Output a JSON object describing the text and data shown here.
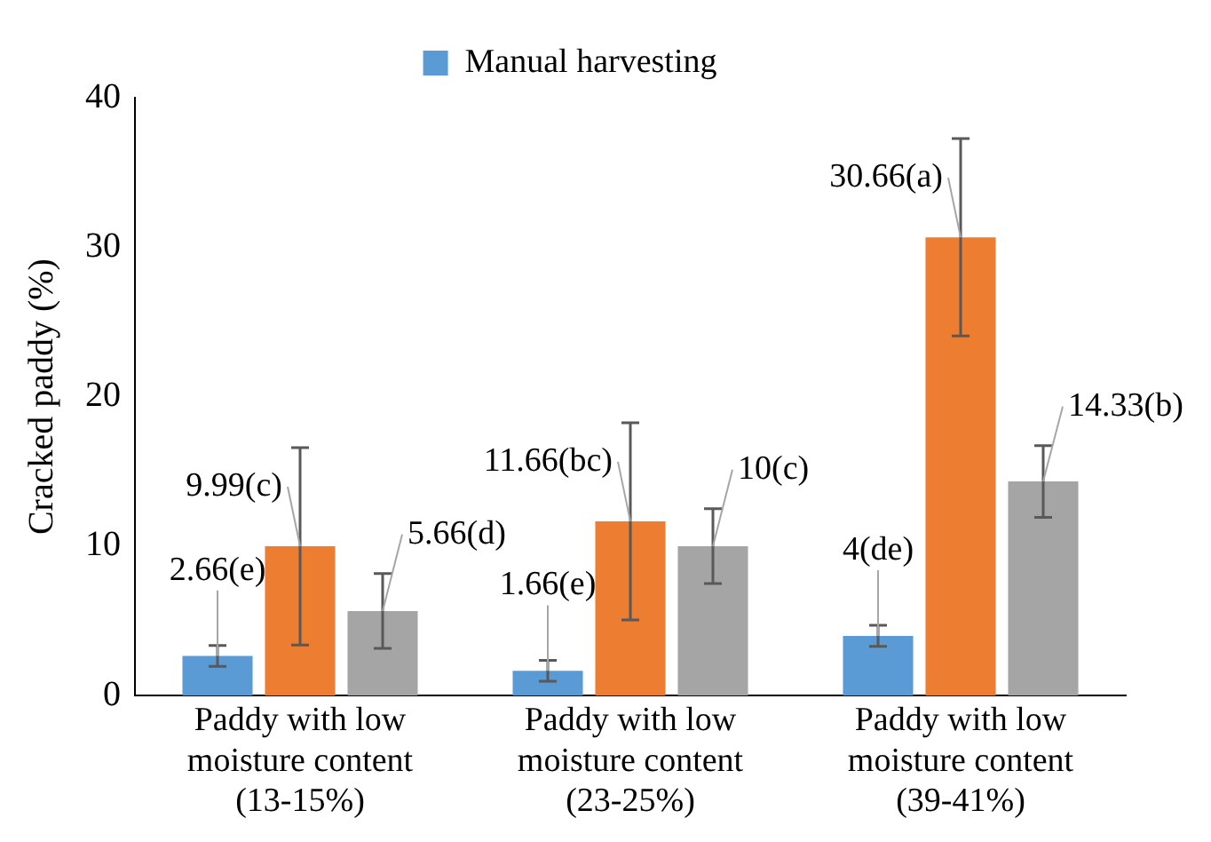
{
  "chart_data": {
    "type": "bar",
    "ylabel": "Cracked paddy (%)",
    "categories": [
      "Paddy with low moisture content (13-15%)",
      "Paddy with low moisture content (23-25%)",
      "Paddy with low moisture content (39-41%)"
    ],
    "series": [
      {
        "name": "Manual harvesting",
        "color": "#5b9bd5",
        "values": [
          2.66,
          1.66,
          4
        ],
        "errors": [
          0.7,
          0.7,
          0.7
        ],
        "value_labels": [
          "2.66(e)",
          "1.66(e)",
          "4(de)"
        ]
      },
      {
        "color": "#ed7d31",
        "values": [
          9.99,
          11.66,
          30.66
        ],
        "errors": [
          6.6,
          6.6,
          6.6
        ],
        "value_labels": [
          "9.99(c)",
          "11.66(bc)",
          "30.66(a)"
        ]
      },
      {
        "color": "#a5a5a5",
        "values": [
          5.66,
          10,
          14.33
        ],
        "errors": [
          2.5,
          2.5,
          2.4
        ],
        "value_labels": [
          "5.66(d)",
          "10(c)",
          "14.33(b)"
        ]
      }
    ],
    "ylim": [
      0,
      40
    ],
    "yticks": [
      0,
      10,
      20,
      30,
      40
    ],
    "grid": false,
    "legend": "top"
  }
}
